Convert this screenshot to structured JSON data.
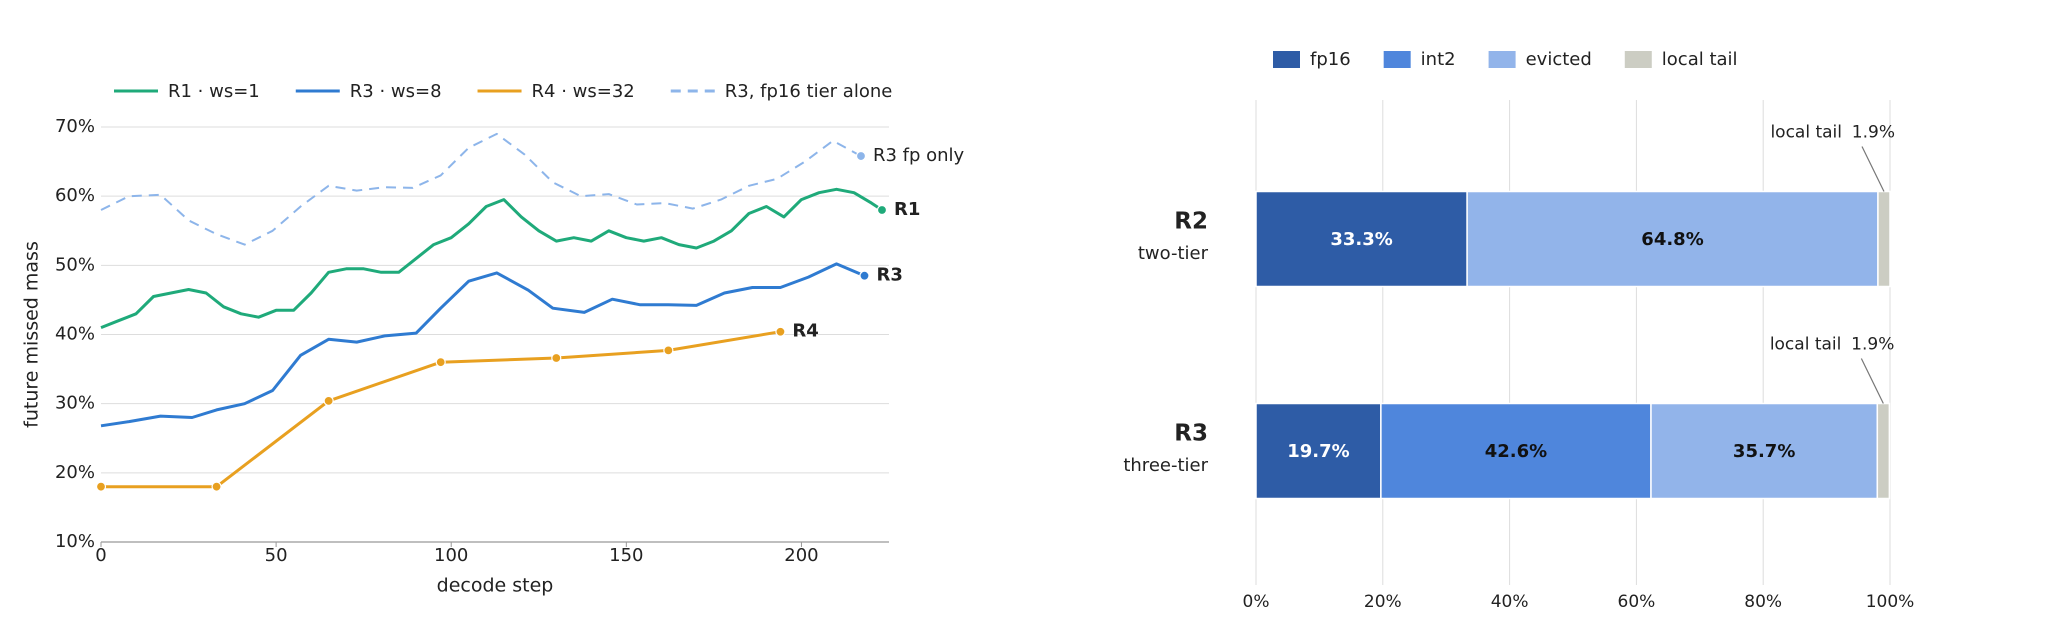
{
  "chart_data": [
    {
      "type": "line",
      "xlabel": "decode step",
      "ylabel": "future missed mass",
      "xlim": [
        0,
        225
      ],
      "ylim": [
        10,
        70
      ],
      "xticks": [
        0,
        50,
        100,
        150,
        200
      ],
      "yticks": [
        {
          "value": 10,
          "label": "10%"
        },
        {
          "value": 20,
          "label": "20%"
        },
        {
          "value": 30,
          "label": "30%"
        },
        {
          "value": 40,
          "label": "40%"
        },
        {
          "value": 50,
          "label": "50%"
        },
        {
          "value": 60,
          "label": "60%"
        },
        {
          "value": 70,
          "label": "70%"
        }
      ],
      "grid": true,
      "legend": "top",
      "series": [
        {
          "name": "R1 · ws=1",
          "color": "#1faa7a",
          "end_label": "R1",
          "x": [
            0,
            5,
            10,
            15,
            20,
            25,
            30,
            35,
            40,
            45,
            50,
            55,
            60,
            65,
            70,
            75,
            80,
            85,
            90,
            95,
            100,
            105,
            110,
            115,
            120,
            125,
            130,
            135,
            140,
            145,
            150,
            155,
            160,
            165,
            170,
            175,
            180,
            185,
            190,
            195,
            200,
            205,
            210,
            215,
            220,
            223
          ],
          "values": [
            41,
            42,
            43,
            45.5,
            46,
            46.5,
            46,
            44,
            43,
            42.5,
            43.5,
            43.5,
            46,
            49,
            49.5,
            49.5,
            49,
            49,
            51,
            53,
            54,
            56,
            58.5,
            59.5,
            57,
            55,
            53.5,
            54,
            53.5,
            55,
            54,
            53.5,
            54,
            53,
            52.5,
            53.5,
            55,
            57.5,
            58.5,
            57,
            59.5,
            60.5,
            61,
            60.5,
            59,
            58
          ]
        },
        {
          "name": "R3 · ws=8",
          "color": "#2f7bd1",
          "end_label": "R3",
          "x": [
            0,
            8,
            17,
            26,
            33,
            41,
            49,
            57,
            65,
            73,
            81,
            90,
            97,
            105,
            113,
            122,
            129,
            138,
            146,
            154,
            162,
            170,
            178,
            186,
            194,
            202,
            210,
            218
          ],
          "values": [
            26.8,
            27.4,
            28.2,
            28,
            29.1,
            30,
            31.9,
            37,
            39.3,
            38.9,
            39.8,
            40.2,
            43.8,
            47.7,
            48.9,
            46.4,
            43.8,
            43.2,
            45.1,
            44.3,
            44.3,
            44.2,
            46,
            46.8,
            46.8,
            48.3,
            50.2,
            48.5
          ]
        },
        {
          "name": "R4 · ws=32",
          "color": "#e8a020",
          "end_label": "R4",
          "markers": true,
          "x": [
            0,
            33,
            65,
            97,
            130,
            162,
            194
          ],
          "values": [
            18,
            18,
            30.4,
            36,
            36.6,
            37.7,
            40.4
          ]
        },
        {
          "name": "R3, fp16 tier alone",
          "color": "#8db5ea",
          "end_label": "R3 fp only",
          "dash": true,
          "x": [
            0,
            8,
            17,
            25,
            33,
            41,
            49,
            57,
            65,
            73,
            81,
            89,
            97,
            105,
            113,
            121,
            129,
            137,
            145,
            153,
            161,
            169,
            177,
            185,
            193,
            201,
            209,
            217
          ],
          "values": [
            58,
            60,
            60.2,
            56.5,
            54.5,
            53,
            55,
            58.5,
            61.5,
            60.8,
            61.3,
            61.2,
            63,
            67,
            69,
            66,
            62,
            60,
            60.3,
            58.8,
            59,
            58.2,
            59.5,
            61.5,
            62.5,
            65,
            68,
            65.8
          ]
        }
      ]
    },
    {
      "type": "bar",
      "orientation": "horizontal",
      "stacked": true,
      "legend": "top",
      "grid": true,
      "categories": [
        "R2",
        "R3"
      ],
      "category_subtitles": [
        "two-tier",
        "three-tier"
      ],
      "xlim": [
        0,
        100
      ],
      "xticks": [
        {
          "value": 0,
          "label": "0%"
        },
        {
          "value": 20,
          "label": "20%"
        },
        {
          "value": 40,
          "label": "40%"
        },
        {
          "value": 60,
          "label": "60%"
        },
        {
          "value": 80,
          "label": "80%"
        },
        {
          "value": 100,
          "label": "100%"
        }
      ],
      "series": [
        {
          "name": "fp16",
          "color": "#2e5ca6",
          "values": [
            33.3,
            19.7
          ],
          "value_labels": [
            "33.3%",
            "19.7%"
          ],
          "label_color": "#ffffff"
        },
        {
          "name": "int2",
          "color": "#4f86dc",
          "values": [
            null,
            42.6
          ],
          "value_labels": [
            null,
            "42.6%"
          ],
          "label_color": "#111111"
        },
        {
          "name": "evicted",
          "color": "#92b4ea",
          "values": [
            64.8,
            35.7
          ],
          "value_labels": [
            "64.8%",
            "35.7%"
          ],
          "label_color": "#111111"
        },
        {
          "name": "local tail",
          "color": "#cccdc3",
          "values": [
            1.9,
            1.9
          ],
          "value_labels": [
            "1.9%",
            "1.9%"
          ],
          "callout": true
        }
      ]
    }
  ]
}
